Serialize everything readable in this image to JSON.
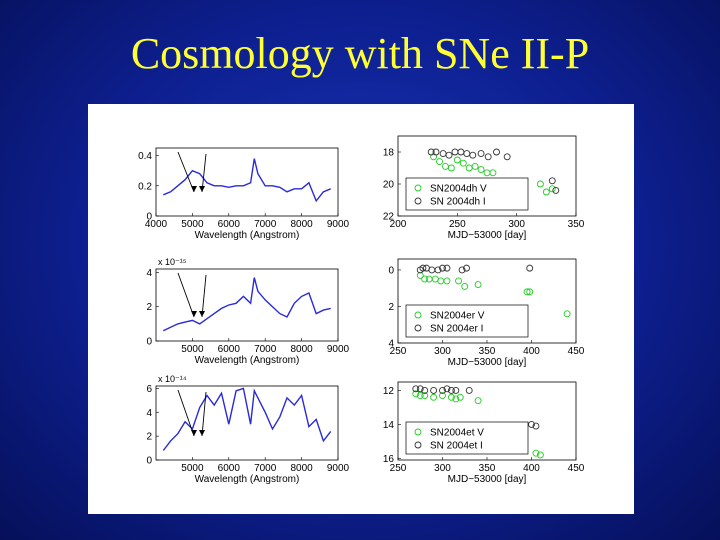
{
  "slide": {
    "title": "Cosmology with SNe II-P"
  },
  "colors": {
    "spectrum": "#2a2ad8",
    "v_band": "#22cc22",
    "i_band": "#333333",
    "title": "#ffff33"
  },
  "chart_data": [
    {
      "type": "line",
      "panel": "spectrum-1",
      "xlabel": "Wavelength (Angstrom)",
      "xlim": [
        4000,
        9000
      ],
      "ylim": [
        0,
        0.45
      ],
      "xticks": [
        "4000",
        "5000",
        "6000",
        "7000",
        "8000",
        "9000"
      ],
      "yticks": [
        "0",
        "0.2",
        "0.4"
      ],
      "exponent": "",
      "x": [
        4200,
        4400,
        4600,
        4800,
        5000,
        5200,
        5400,
        5600,
        5800,
        6000,
        6200,
        6400,
        6600,
        6700,
        6800,
        7000,
        7200,
        7400,
        7600,
        7800,
        8000,
        8200,
        8400,
        8600,
        8800
      ],
      "y": [
        0.14,
        0.16,
        0.2,
        0.24,
        0.3,
        0.28,
        0.22,
        0.2,
        0.2,
        0.19,
        0.2,
        0.2,
        0.22,
        0.38,
        0.28,
        0.2,
        0.2,
        0.19,
        0.16,
        0.18,
        0.18,
        0.22,
        0.1,
        0.16,
        0.18
      ]
    },
    {
      "type": "scatter",
      "panel": "photometry-1",
      "xlabel": "MJD−53000 [day]",
      "xlim": [
        200,
        350
      ],
      "ylim": [
        22,
        17
      ],
      "xticks": [
        "200",
        "250",
        "300",
        "350"
      ],
      "yticks": [
        "18",
        "20",
        "22"
      ],
      "series": [
        {
          "name": "SN2004dh V",
          "x": [
            230,
            235,
            240,
            245,
            250,
            255,
            260,
            265,
            270,
            275,
            280,
            320,
            325,
            330
          ],
          "y": [
            18.3,
            18.6,
            18.9,
            19.0,
            18.5,
            18.7,
            19.0,
            18.9,
            19.1,
            19.3,
            19.3,
            20.0,
            20.5,
            20.3
          ]
        },
        {
          "name": "SN 2004dh I",
          "x": [
            228,
            232,
            238,
            243,
            248,
            253,
            258,
            263,
            270,
            276,
            283,
            292,
            330,
            333
          ],
          "y": [
            18.0,
            18.0,
            18.1,
            18.2,
            18.0,
            18.0,
            18.1,
            18.2,
            18.1,
            18.3,
            18.0,
            18.3,
            19.8,
            20.4
          ]
        }
      ]
    },
    {
      "type": "line",
      "panel": "spectrum-2",
      "xlabel": "Wavelength (Angstrom)",
      "xlim": [
        4000,
        9000
      ],
      "ylim": [
        0,
        4.2
      ],
      "xticks": [
        "5000",
        "6000",
        "7000",
        "8000",
        "9000"
      ],
      "yticks": [
        "0",
        "2",
        "4"
      ],
      "exponent": "x 10⁻¹⁵",
      "x": [
        4200,
        4400,
        4600,
        4800,
        5000,
        5200,
        5400,
        5600,
        5800,
        6000,
        6200,
        6400,
        6600,
        6700,
        6800,
        7000,
        7200,
        7400,
        7600,
        7800,
        8000,
        8200,
        8400,
        8600,
        8800
      ],
      "y": [
        0.6,
        0.8,
        1.0,
        1.1,
        1.2,
        1.0,
        1.3,
        1.6,
        1.9,
        2.1,
        2.2,
        2.6,
        2.2,
        3.7,
        2.9,
        2.4,
        2.0,
        1.6,
        1.4,
        2.2,
        2.6,
        2.8,
        1.6,
        1.8,
        1.9
      ]
    },
    {
      "type": "scatter",
      "panel": "photometry-2",
      "xlabel": "MJD−53000 [day]",
      "xlim": [
        250,
        450
      ],
      "ylim": [
        4,
        -0.6
      ],
      "xticks": [
        "250",
        "300",
        "350",
        "400",
        "450"
      ],
      "yticks": [
        "0",
        "2",
        "4"
      ],
      "series": [
        {
          "name": "SN2004er V",
          "x": [
            275,
            280,
            285,
            292,
            298,
            305,
            318,
            325,
            340,
            395,
            398,
            440
          ],
          "y": [
            0.3,
            0.5,
            0.5,
            0.5,
            0.6,
            0.6,
            0.6,
            0.9,
            0.8,
            1.2,
            1.2,
            2.4
          ]
        },
        {
          "name": "SN 2004er I",
          "x": [
            275,
            278,
            282,
            288,
            295,
            300,
            305,
            322,
            327,
            398
          ],
          "y": [
            0.0,
            -0.1,
            -0.1,
            0.0,
            0.0,
            -0.1,
            -0.1,
            0.0,
            -0.1,
            -0.1
          ]
        }
      ]
    },
    {
      "type": "line",
      "panel": "spectrum-3",
      "xlabel": "Wavelength (Angstrom)",
      "xlim": [
        4000,
        9000
      ],
      "ylim": [
        0,
        6.2
      ],
      "xticks": [
        "5000",
        "6000",
        "7000",
        "8000",
        "9000"
      ],
      "yticks": [
        "0",
        "2",
        "4",
        "6"
      ],
      "exponent": "x 10⁻¹⁴",
      "x": [
        4200,
        4400,
        4600,
        4800,
        5000,
        5200,
        5400,
        5600,
        5800,
        6000,
        6200,
        6400,
        6600,
        6700,
        6800,
        7000,
        7200,
        7400,
        7600,
        7800,
        8000,
        8200,
        8400,
        8600,
        8800
      ],
      "y": [
        0.8,
        1.6,
        2.2,
        3.2,
        2.6,
        4.4,
        5.4,
        4.6,
        5.6,
        3.0,
        5.8,
        6.0,
        3.0,
        5.8,
        5.2,
        4.0,
        2.6,
        3.6,
        5.2,
        4.6,
        5.4,
        2.8,
        3.4,
        1.6,
        2.4
      ]
    },
    {
      "type": "scatter",
      "panel": "photometry-3",
      "xlabel": "MJD−53000 [day]",
      "xlim": [
        250,
        450
      ],
      "ylim": [
        16.1,
        11.5
      ],
      "xticks": [
        "250",
        "300",
        "350",
        "400",
        "450"
      ],
      "yticks": [
        "12",
        "14",
        "16"
      ],
      "series": [
        {
          "name": "SN2004et V",
          "x": [
            270,
            275,
            280,
            290,
            300,
            310,
            315,
            320,
            340,
            405,
            410
          ],
          "y": [
            12.2,
            12.3,
            12.3,
            12.4,
            12.3,
            12.4,
            12.5,
            12.4,
            12.6,
            15.7,
            15.8
          ]
        },
        {
          "name": "SN 2004et I",
          "x": [
            270,
            275,
            280,
            290,
            300,
            305,
            310,
            315,
            330,
            400,
            405
          ],
          "y": [
            11.9,
            11.9,
            12.0,
            12.0,
            12.0,
            11.9,
            12.0,
            12.0,
            12.0,
            14.0,
            14.1
          ]
        }
      ]
    }
  ]
}
